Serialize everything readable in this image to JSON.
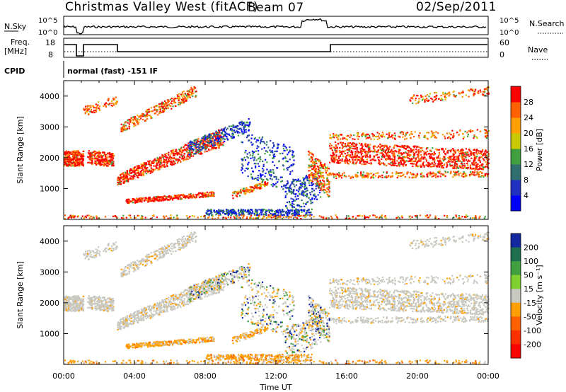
{
  "header": {
    "station": "Christmas Valley West (fitACF)",
    "beam": "Beam 07",
    "date": "02/Sep/2011"
  },
  "top_panels": {
    "nsky_label": "N.Sky",
    "nsky_ticks": [
      "10^5",
      "10^0"
    ],
    "nsearch_label": "N.Search",
    "nsearch_ticks": [
      "10^5",
      "10^0"
    ],
    "freq_label": "Freq.",
    "freq_unit": "[MHz]",
    "freq_ticks": [
      "18",
      "8"
    ],
    "nave_label": "Nave",
    "nave_ticks": [
      "60",
      "0"
    ],
    "cpid_label": "CPID",
    "cpid_text": "normal (fast) -151 IF"
  },
  "chart_data": [
    {
      "type": "heatmap",
      "panel": "power",
      "ylabel": "Slant Range [km]",
      "y_ticks": [
        "1000",
        "2000",
        "3000",
        "4000"
      ],
      "ylim": [
        0,
        4500
      ],
      "xlim_hours": [
        0,
        24
      ],
      "colorbar_label": "Power [dB]",
      "colorbar_ticks": [
        "4",
        "8",
        "12",
        "16",
        "20",
        "24",
        "28"
      ],
      "colorbar_colors": [
        "#0000ff",
        "#2030c0",
        "#2f6f6f",
        "#40a040",
        "#c8c800",
        "#ffa000",
        "#ff6000",
        "#ff0000"
      ]
    },
    {
      "type": "heatmap",
      "panel": "velocity",
      "ylabel": "Slant Range [km]",
      "y_ticks": [
        "1000",
        "2000",
        "3000",
        "4000"
      ],
      "ylim": [
        0,
        4500
      ],
      "xlim_hours": [
        0,
        24
      ],
      "colorbar_label": "Velocity [m s⁻¹]",
      "colorbar_ticks": [
        "200",
        "100",
        "50",
        "15",
        "-15",
        "-50",
        "-100",
        "-200"
      ],
      "colorbar_colors": [
        "#1428a0",
        "#1f6f4f",
        "#40a040",
        "#80d030",
        "#c8c8c0",
        "#ffa000",
        "#ff6000",
        "#ff3000",
        "#ff0000"
      ],
      "xlabel": "Time UT",
      "x_ticks": [
        "00:00",
        "04:00",
        "08:00",
        "12:00",
        "16:00",
        "20:00",
        "00:00"
      ]
    }
  ],
  "colors": {
    "ground_scatter_gray": "#c8c8c0"
  }
}
